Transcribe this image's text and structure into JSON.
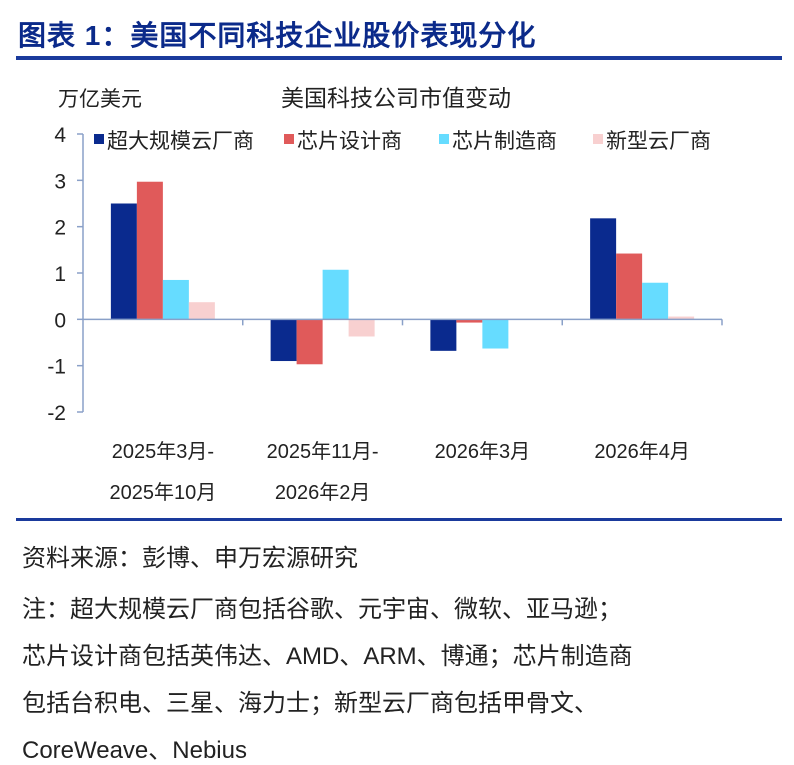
{
  "figure": {
    "title": "图表 1：美国不同科技企业股价表现分化"
  },
  "chart_data": {
    "type": "bar",
    "title": "美国科技公司市值变动",
    "ylabel": "万亿美元",
    "xlabel": "",
    "ylim": [
      -2,
      4
    ],
    "yticks": [
      -2,
      -1,
      0,
      1,
      2,
      3,
      4
    ],
    "ytick_labels": [
      "-2",
      "-1",
      "0",
      "1",
      "2",
      "3",
      "4"
    ],
    "grid": false,
    "legend_position": "top",
    "categories": [
      [
        "2025年3月-",
        "2025年10月"
      ],
      [
        "2025年11月-",
        "2026年2月"
      ],
      [
        "2026年3月"
      ],
      [
        "2026年4月"
      ]
    ],
    "series": [
      {
        "name": "超大规模云厂商",
        "color": "#0a2a8e",
        "values": [
          2.5,
          -0.9,
          -0.68,
          2.18
        ]
      },
      {
        "name": "芯片设计商",
        "color": "#e05a5a",
        "values": [
          2.97,
          -0.97,
          -0.07,
          1.42
        ]
      },
      {
        "name": "芯片制造商",
        "color": "#66dcff",
        "values": [
          0.85,
          1.07,
          -0.63,
          0.79
        ]
      },
      {
        "name": "新型云厂商",
        "color": "#f8d0d0",
        "values": [
          0.37,
          -0.37,
          0.0,
          0.06
        ]
      }
    ]
  },
  "notes": {
    "source": "资料来源：彭博、申万宏源研究",
    "line1": "注：超大规模云厂商包括谷歌、元宇宙、微软、亚马逊；",
    "line2": "芯片设计商包括英伟达、AMD、ARM、博通；芯片制造商",
    "line3": "包括台积电、三星、海力士；新型云厂商包括甲骨文、",
    "line4": "CoreWeave、Nebius"
  }
}
